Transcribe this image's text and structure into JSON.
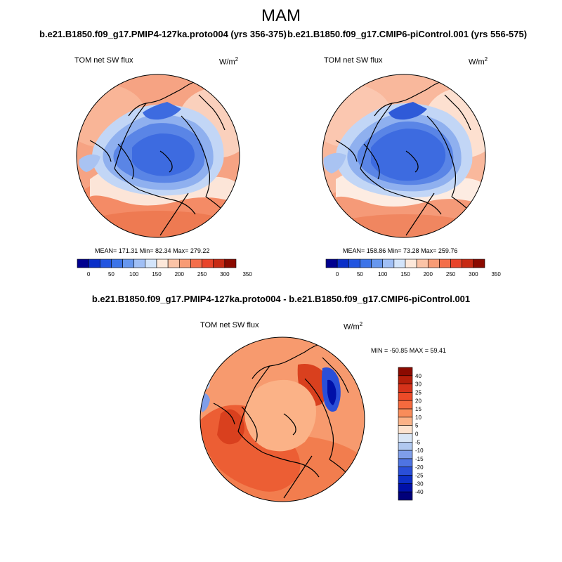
{
  "figure": {
    "title": "MAM"
  },
  "panels": [
    {
      "id": "left",
      "subtitle": "b.e21.B1850.f09_g17.PMIP4-127ka.proto004 (yrs 356-375)",
      "variable": "TOM net SW flux",
      "units_base": "W/m",
      "units_exp": "2",
      "stats_text": "MEAN= 171.31  Min=  82.34  Max= 279.22"
    },
    {
      "id": "right",
      "subtitle": "b.e21.B1850.f09_g17.CMIP6-piControl.001 (yrs 556-575)",
      "variable": "TOM net SW flux",
      "units_base": "W/m",
      "units_exp": "2",
      "stats_text": "MEAN= 158.86  Min=  73.28  Max= 259.76"
    }
  ],
  "difference": {
    "subtitle": "b.e21.B1850.f09_g17.PMIP4-127ka.proto004 - b.e21.B1850.f09_g17.CMIP6-piControl.001",
    "variable": "TOM net SW flux",
    "units_base": "W/m",
    "units_exp": "2",
    "stats_text": "MIN = -50.85 MAX =  59.41"
  },
  "chart_data": [
    {
      "type": "heatmap",
      "name_hint": "polar stereographic map, model 1",
      "colorbar": {
        "orientation": "horizontal",
        "levels": [
          "0",
          "50",
          "100",
          "150",
          "200",
          "250",
          "300",
          "350"
        ],
        "colors": [
          "#00008f",
          "#0a2fc8",
          "#2255e0",
          "#3d74e8",
          "#6797ee",
          "#a0bff5",
          "#d3e4fa",
          "#fde8da",
          "#fbc3a6",
          "#f89b75",
          "#f46e4a",
          "#e8442a",
          "#c72a14",
          "#8b0a00"
        ]
      },
      "stats": {
        "mean": 171.31,
        "min": 82.34,
        "max": 279.22
      }
    },
    {
      "type": "heatmap",
      "name_hint": "polar stereographic map, model 2",
      "colorbar": {
        "orientation": "horizontal",
        "levels": [
          "0",
          "50",
          "100",
          "150",
          "200",
          "250",
          "300",
          "350"
        ],
        "colors": [
          "#00008f",
          "#0a2fc8",
          "#2255e0",
          "#3d74e8",
          "#6797ee",
          "#a0bff5",
          "#d3e4fa",
          "#fde8da",
          "#fbc3a6",
          "#f89b75",
          "#f46e4a",
          "#e8442a",
          "#c72a14",
          "#8b0a00"
        ]
      },
      "stats": {
        "mean": 158.86,
        "min": 73.28,
        "max": 259.76
      }
    },
    {
      "type": "heatmap",
      "name_hint": "difference map",
      "colorbar": {
        "orientation": "vertical",
        "levels": [
          "40",
          "30",
          "25",
          "20",
          "15",
          "10",
          "5",
          "0",
          "-5",
          "-10",
          "-15",
          "-20",
          "-25",
          "-30",
          "-40"
        ],
        "colors": [
          "#8b0a00",
          "#b51e0a",
          "#d6321a",
          "#ec4a28",
          "#f56a3e",
          "#f98c5a",
          "#fbb287",
          "#fde3cf",
          "#d9e6f6",
          "#b0c8f0",
          "#7f9ee9",
          "#4f74e2",
          "#2a4fd8",
          "#0d2fc7",
          "#0010a8",
          "#00007a"
        ]
      },
      "stats": {
        "min": -50.85,
        "max": 59.41
      }
    }
  ]
}
